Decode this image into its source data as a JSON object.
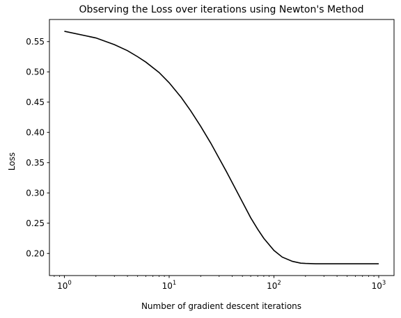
{
  "chart_data": {
    "type": "line",
    "title": "Observing the Loss over iterations using Newton's Method",
    "xlabel": "Number of gradient descent iterations",
    "ylabel": "Loss",
    "xscale": "log",
    "xlim": [
      0.72,
      1400
    ],
    "ylim": [
      0.1635,
      0.5865
    ],
    "grid": false,
    "x_ticks": [
      {
        "value": 1,
        "base": "10",
        "exp": "0"
      },
      {
        "value": 10,
        "base": "10",
        "exp": "1"
      },
      {
        "value": 100,
        "base": "10",
        "exp": "2"
      },
      {
        "value": 1000,
        "base": "10",
        "exp": "3"
      }
    ],
    "y_ticks": [
      {
        "value": 0.2,
        "label": "0.20"
      },
      {
        "value": 0.25,
        "label": "0.25"
      },
      {
        "value": 0.3,
        "label": "0.30"
      },
      {
        "value": 0.35,
        "label": "0.35"
      },
      {
        "value": 0.4,
        "label": "0.40"
      },
      {
        "value": 0.45,
        "label": "0.45"
      },
      {
        "value": 0.5,
        "label": "0.50"
      },
      {
        "value": 0.55,
        "label": "0.55"
      }
    ],
    "series": [
      {
        "color": "#000000",
        "x": [
          1,
          2,
          3,
          4,
          5,
          6,
          8,
          10,
          13,
          16,
          20,
          25,
          30,
          35,
          40,
          50,
          60,
          70,
          80,
          100,
          120,
          150,
          180,
          200,
          250,
          300,
          400,
          500,
          700,
          1000
        ],
        "y": [
          0.567,
          0.556,
          0.545,
          0.535,
          0.525,
          0.516,
          0.499,
          0.482,
          0.458,
          0.436,
          0.41,
          0.382,
          0.357,
          0.336,
          0.317,
          0.285,
          0.259,
          0.24,
          0.225,
          0.205,
          0.194,
          0.187,
          0.184,
          0.1835,
          0.183,
          0.183,
          0.183,
          0.183,
          0.183,
          0.183
        ]
      }
    ]
  }
}
